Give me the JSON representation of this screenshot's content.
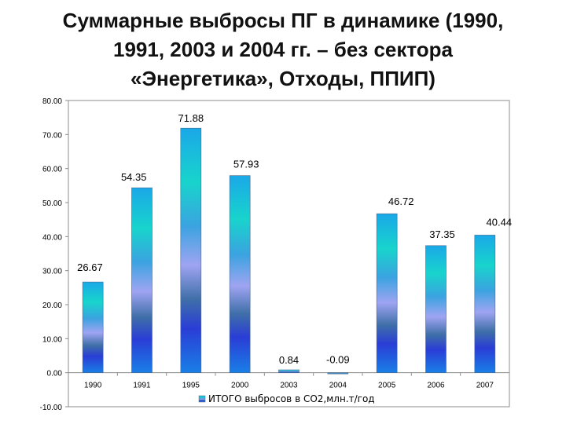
{
  "title": {
    "lines": [
      "Суммарные выбросы ПГ в динамике (1990,",
      "1991, 2003 и 2004 гг. – без сектора",
      "«Энергетика», Отходы, ППИП)"
    ]
  },
  "chart_data": {
    "type": "bar",
    "categories": [
      "1990",
      "1991",
      "1995",
      "2000",
      "2003",
      "2004",
      "2005",
      "2006",
      "2007"
    ],
    "series": [
      {
        "name": "ИТОГО выбросов в CO2,млн.т/год",
        "values": [
          26.67,
          54.35,
          71.88,
          57.93,
          0.84,
          -0.09,
          46.72,
          37.35,
          40.44
        ]
      }
    ],
    "data_labels": [
      "26.67",
      "54.35",
      "71.88",
      "57.93",
      "0.84",
      "-0.09",
      "46.72",
      "37.35",
      "40.44"
    ],
    "y_ticks": [
      80,
      70,
      60,
      50,
      40,
      30,
      20,
      10,
      0,
      -10
    ],
    "y_tick_labels": [
      "80.00",
      "70.00",
      "60.00",
      "50.00",
      "40.00",
      "30.00",
      "20.00",
      "10.00",
      "0.00",
      "-10.00"
    ],
    "ylim": [
      -10,
      80
    ],
    "grid": false,
    "legend_position": "bottom",
    "bar_gradient_colors": [
      "#1a7fe6",
      "#2a3dd6",
      "#3f6fa8",
      "#9fa4f2",
      "#3aa3e0",
      "#18d4cc",
      "#1aa8e8"
    ]
  }
}
